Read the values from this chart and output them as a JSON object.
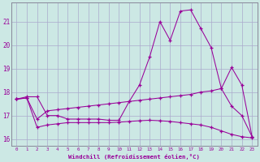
{
  "xlabel": "Windchill (Refroidissement éolien,°C)",
  "bg_color": "#cce8e4",
  "line_color": "#990099",
  "grid_color": "#aaaacc",
  "xlim_min": -0.5,
  "xlim_max": 23.5,
  "ylim_min": 15.7,
  "ylim_max": 21.8,
  "yticks": [
    16,
    17,
    18,
    19,
    20,
    21
  ],
  "xticks": [
    0,
    1,
    2,
    3,
    4,
    5,
    6,
    7,
    8,
    9,
    10,
    11,
    12,
    13,
    14,
    15,
    16,
    17,
    18,
    19,
    20,
    21,
    22,
    23
  ],
  "line1_x": [
    0,
    1,
    2,
    3,
    4,
    5,
    6,
    7,
    8,
    9,
    10,
    11,
    12,
    13,
    14,
    15,
    16,
    17,
    18,
    19,
    20,
    21,
    22,
    23
  ],
  "line1_y": [
    17.7,
    17.8,
    17.8,
    17.0,
    17.0,
    16.85,
    16.85,
    16.85,
    16.85,
    16.8,
    16.8,
    17.6,
    18.3,
    19.5,
    21.0,
    20.2,
    21.45,
    21.5,
    20.7,
    19.9,
    18.15,
    19.05,
    18.3,
    16.1
  ],
  "line2_x": [
    0,
    1,
    2,
    3,
    4,
    5,
    6,
    7,
    8,
    9,
    10,
    11,
    12,
    13,
    14,
    15,
    16,
    17,
    18,
    19,
    20,
    21,
    22,
    23
  ],
  "line2_y": [
    17.7,
    17.75,
    16.85,
    17.2,
    17.25,
    17.3,
    17.35,
    17.4,
    17.45,
    17.5,
    17.55,
    17.6,
    17.65,
    17.7,
    17.75,
    17.8,
    17.85,
    17.9,
    18.0,
    18.05,
    18.15,
    17.4,
    17.0,
    16.1
  ],
  "line3_x": [
    0,
    1,
    2,
    3,
    4,
    5,
    6,
    7,
    8,
    9,
    10,
    11,
    12,
    13,
    14,
    15,
    16,
    17,
    18,
    19,
    20,
    21,
    22,
    23
  ],
  "line3_y": [
    17.7,
    17.75,
    16.5,
    16.6,
    16.65,
    16.7,
    16.7,
    16.7,
    16.7,
    16.7,
    16.72,
    16.75,
    16.78,
    16.8,
    16.78,
    16.75,
    16.7,
    16.65,
    16.6,
    16.5,
    16.35,
    16.2,
    16.1,
    16.05
  ]
}
